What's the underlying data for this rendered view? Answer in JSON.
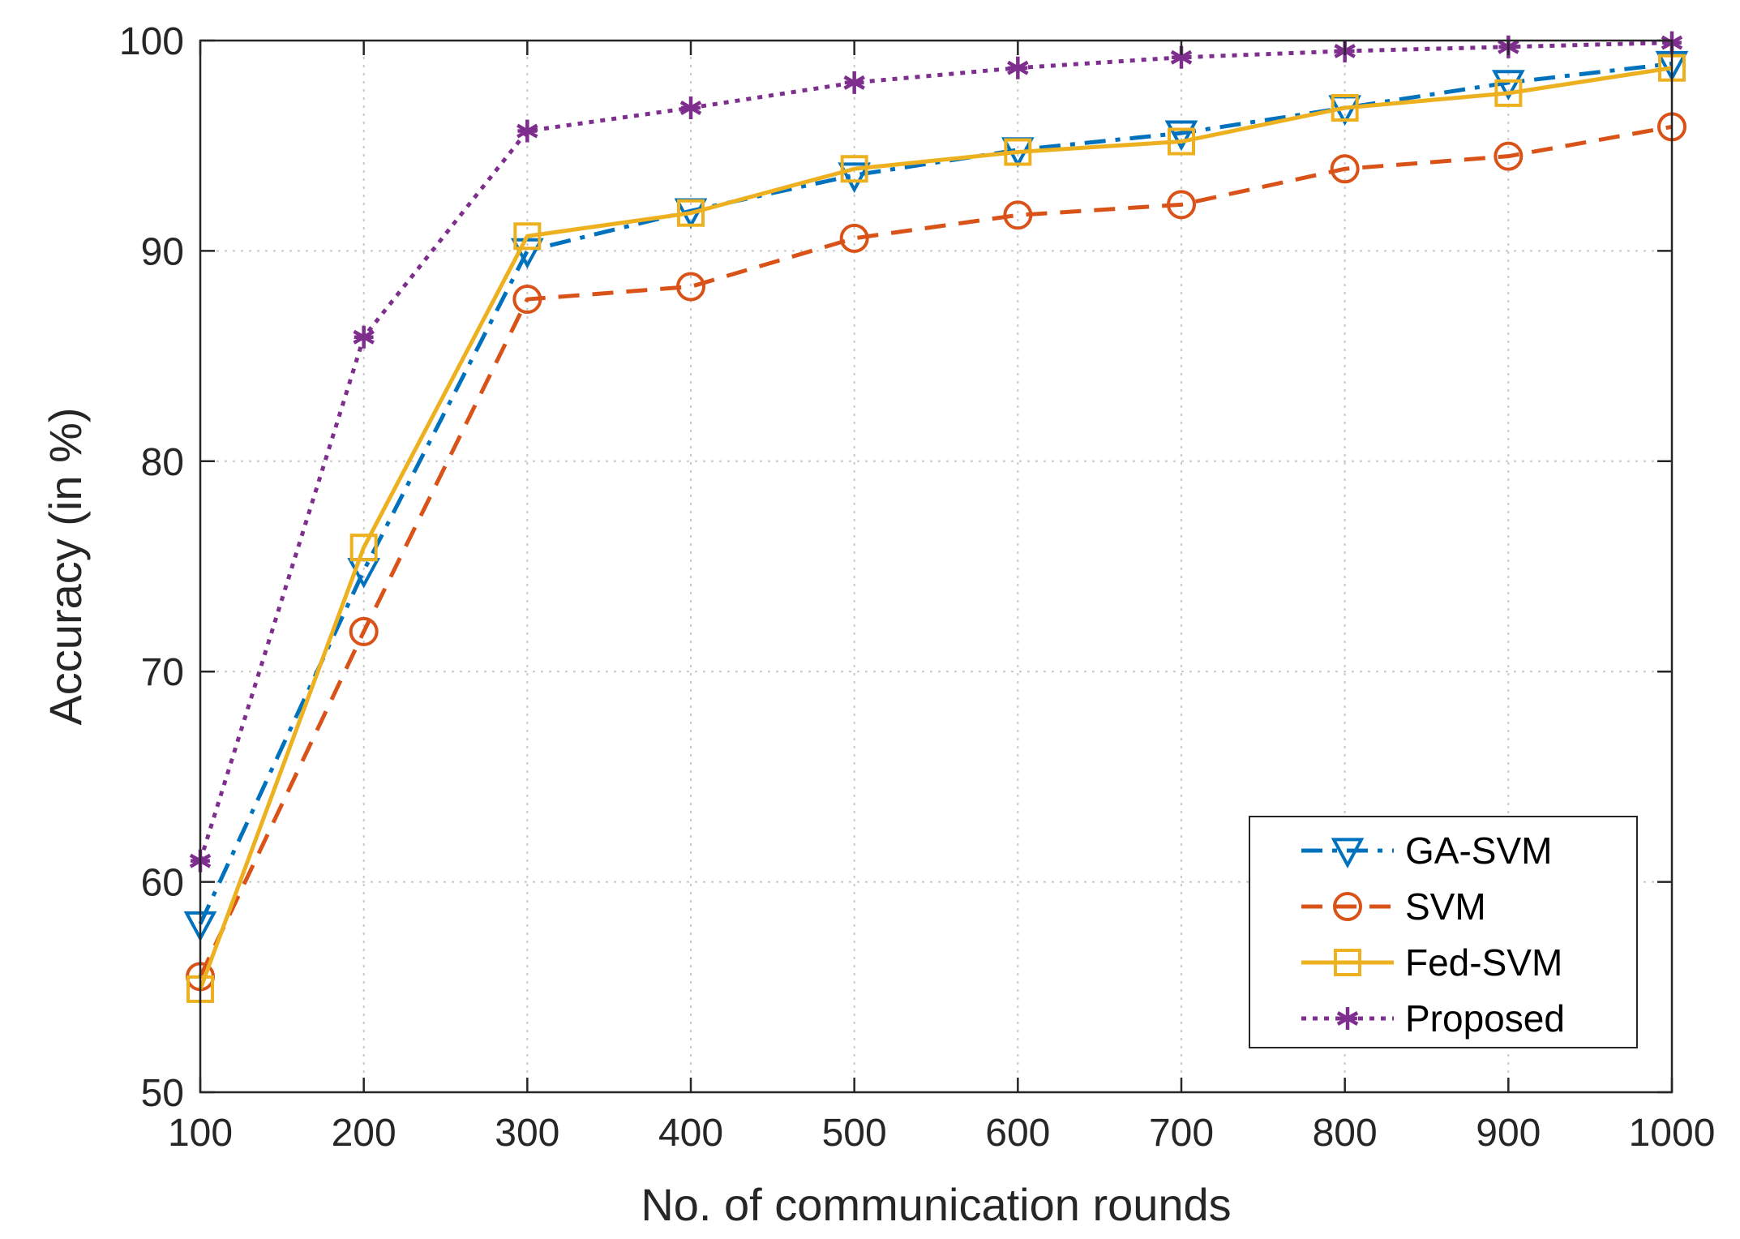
{
  "chart_data": {
    "type": "line",
    "title": "",
    "xlabel": "No. of communication rounds",
    "ylabel": "Accuracy (in %)",
    "x": [
      100,
      200,
      300,
      400,
      500,
      600,
      700,
      800,
      900,
      1000
    ],
    "xlim": [
      100,
      1000
    ],
    "ylim": [
      50,
      100
    ],
    "xticks": [
      "100",
      "200",
      "300",
      "400",
      "500",
      "600",
      "700",
      "800",
      "900",
      "1000"
    ],
    "yticks": [
      "50",
      "60",
      "70",
      "80",
      "90",
      "100"
    ],
    "grid": true,
    "legend_position": "bottom-right",
    "series": [
      {
        "name": "GA-SVM",
        "color": "#0072BD",
        "dash": "dashdot",
        "marker": "triangle-down",
        "values": [
          58.0,
          74.8,
          90.0,
          91.9,
          93.6,
          94.8,
          95.6,
          96.8,
          98.0,
          98.9
        ]
      },
      {
        "name": "SVM",
        "color": "#D95319",
        "dash": "dashed",
        "marker": "circle",
        "values": [
          55.5,
          71.9,
          87.7,
          88.3,
          90.6,
          91.7,
          92.2,
          93.9,
          94.5,
          95.9
        ]
      },
      {
        "name": "Fed-SVM",
        "color": "#EDB120",
        "dash": "solid",
        "marker": "square",
        "values": [
          54.9,
          75.9,
          90.7,
          91.8,
          93.9,
          94.7,
          95.2,
          96.8,
          97.5,
          98.7
        ]
      },
      {
        "name": "Proposed",
        "color": "#7E2F8E",
        "dash": "dotted",
        "marker": "asterisk",
        "values": [
          61.0,
          85.9,
          95.7,
          96.8,
          98.0,
          98.7,
          99.2,
          99.5,
          99.7,
          99.9
        ]
      }
    ]
  }
}
